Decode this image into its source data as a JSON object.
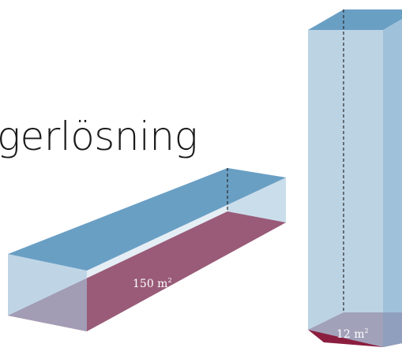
{
  "heading": {
    "text": "gerlösning"
  },
  "boxes": [
    {
      "id": "wide-box",
      "area_value": "150 m",
      "area_exponent": "2"
    },
    {
      "id": "tall-box",
      "area_value": "12 m",
      "area_exponent": "2"
    }
  ],
  "colors": {
    "top_face": "#6a9fc4",
    "side_face": "#b5cfe2",
    "front_face": "#a9c7dd",
    "floor": "#8b1e3f",
    "floor_dark": "#7a1838",
    "text_dark": "#1a1a1a"
  }
}
